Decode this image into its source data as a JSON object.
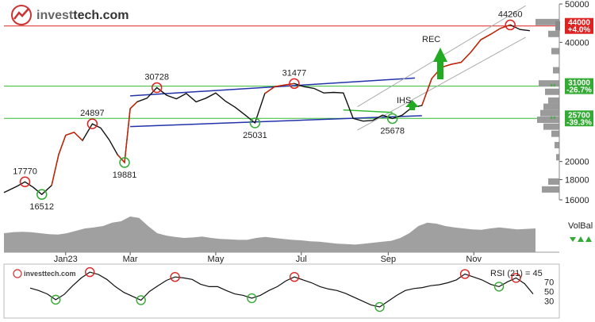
{
  "logo": {
    "prefix": "invest",
    "suffix": "tech.com"
  },
  "colors": {
    "price_line": "#111111",
    "price_red_segment": "#cc2200",
    "support_line": "#33bb33",
    "resistance_line": "#dd2222",
    "channel_line": "#2233aa",
    "up_channel": "#aaaaaa",
    "volume_fill": "#a0a0a0",
    "badge_red": "#dd2222",
    "badge_green": "#33aa33",
    "arrow_green": "#22aa22"
  },
  "chart_data": [
    {
      "type": "line",
      "name": "price",
      "x": [
        "2022-12-01",
        "2022-12-10",
        "2022-12-16",
        "2022-12-22",
        "2022-12-28",
        "2023-01-04",
        "2023-01-09",
        "2023-01-14",
        "2023-01-20",
        "2023-01-26",
        "2023-02-02",
        "2023-02-08",
        "2023-02-14",
        "2023-02-20",
        "2023-02-25",
        "2023-03-01",
        "2023-03-06",
        "2023-03-13",
        "2023-03-20",
        "2023-03-27",
        "2023-04-03",
        "2023-04-10",
        "2023-04-17",
        "2023-04-24",
        "2023-05-01",
        "2023-05-08",
        "2023-05-15",
        "2023-05-22",
        "2023-05-29",
        "2023-06-05",
        "2023-06-12",
        "2023-06-19",
        "2023-06-26",
        "2023-07-03",
        "2023-07-10",
        "2023-07-17",
        "2023-07-24",
        "2023-07-31",
        "2023-08-07",
        "2023-08-14",
        "2023-08-21",
        "2023-08-28",
        "2023-09-04",
        "2023-09-11",
        "2023-09-18",
        "2023-09-25",
        "2023-10-02",
        "2023-10-09",
        "2023-10-16",
        "2023-10-23",
        "2023-10-30",
        "2023-11-06",
        "2023-11-13",
        "2023-11-20",
        "2023-11-27",
        "2023-12-04",
        "2023-12-11"
      ],
      "y": [
        16700,
        17300,
        17770,
        17200,
        16512,
        17400,
        20800,
        23300,
        23700,
        22600,
        24897,
        24300,
        22700,
        20800,
        19881,
        27200,
        28300,
        28900,
        30728,
        29400,
        28800,
        29700,
        28300,
        28900,
        29800,
        28400,
        27400,
        26200,
        25031,
        29700,
        30900,
        31200,
        31477,
        30900,
        30600,
        29800,
        29900,
        29800,
        25700,
        25300,
        25400,
        26200,
        25678,
        26200,
        27400,
        27700,
        32400,
        34600,
        35200,
        35600,
        37800,
        40600,
        41900,
        43400,
        44260,
        43100,
        42800
      ],
      "xlim": [
        "2022-12-01",
        "2023-12-15"
      ],
      "y_scale": "log",
      "ylim": [
        16000,
        50000
      ],
      "y_ticks": [
        16000,
        18000,
        20000,
        40000,
        50000
      ],
      "x_ticks": [
        "Jan23",
        "Mar",
        "May",
        "Jul",
        "Sep",
        "Nov"
      ],
      "annotations": [
        {
          "text": "17770",
          "x": "2022-12-16",
          "y": 17770,
          "marker": "red-circle"
        },
        {
          "text": "16512",
          "x": "2022-12-28",
          "y": 16512,
          "marker": "green-circle"
        },
        {
          "text": "24897",
          "x": "2023-02-02",
          "y": 24897,
          "marker": "red-circle"
        },
        {
          "text": "19881",
          "x": "2023-02-25",
          "y": 19881,
          "marker": "green-circle"
        },
        {
          "text": "30728",
          "x": "2023-03-20",
          "y": 30728,
          "marker": "red-circle"
        },
        {
          "text": "25031",
          "x": "2023-05-29",
          "y": 25031,
          "marker": "green-circle"
        },
        {
          "text": "31477",
          "x": "2023-06-26",
          "y": 31477,
          "marker": "red-circle"
        },
        {
          "text": "25678",
          "x": "2023-09-04",
          "y": 25678,
          "marker": "green-circle"
        },
        {
          "text": "44260",
          "x": "2023-11-27",
          "y": 44260,
          "marker": "red-circle"
        }
      ],
      "levels": [
        {
          "value": 44000,
          "label": "44000",
          "pct": "+4.0%",
          "kind": "resistance"
        },
        {
          "value": 31000,
          "label": "31000",
          "pct": "-26.7%",
          "kind": "support"
        },
        {
          "value": 25700,
          "label": "25700",
          "pct": "-39.3%",
          "kind": "support"
        }
      ],
      "pattern_labels": [
        "REC",
        "IHS"
      ]
    },
    {
      "type": "area",
      "name": "volume balance",
      "label": "VolBal",
      "x_count": 60,
      "values": [
        0.4,
        0.42,
        0.43,
        0.42,
        0.4,
        0.38,
        0.37,
        0.4,
        0.45,
        0.5,
        0.52,
        0.55,
        0.62,
        0.65,
        0.75,
        0.72,
        0.55,
        0.4,
        0.35,
        0.32,
        0.3,
        0.31,
        0.33,
        0.3,
        0.28,
        0.27,
        0.26,
        0.26,
        0.3,
        0.32,
        0.3,
        0.28,
        0.26,
        0.25,
        0.23,
        0.22,
        0.2,
        0.18,
        0.17,
        0.16,
        0.18,
        0.2,
        0.22,
        0.24,
        0.3,
        0.4,
        0.55,
        0.62,
        0.6,
        0.55,
        0.52,
        0.5,
        0.48,
        0.47,
        0.5,
        0.52,
        0.5,
        0.48,
        0.49,
        0.5
      ]
    },
    {
      "type": "line",
      "name": "RSI",
      "label": "RSI (21) = 45",
      "ylim": [
        0,
        100
      ],
      "y_ticks": [
        30,
        50,
        70
      ],
      "x_count": 60,
      "values": [
        57,
        52,
        45,
        33,
        44,
        62,
        78,
        90,
        85,
        75,
        60,
        48,
        40,
        32,
        50,
        62,
        73,
        80,
        78,
        75,
        65,
        60,
        60,
        52,
        45,
        42,
        36,
        42,
        52,
        60,
        72,
        80,
        74,
        68,
        60,
        55,
        52,
        46,
        38,
        30,
        22,
        18,
        30,
        42,
        52,
        56,
        58,
        62,
        64,
        68,
        74,
        86,
        80,
        74,
        65,
        60,
        70,
        78,
        66,
        45
      ],
      "markers": [
        {
          "index": 3,
          "kind": "green-circle"
        },
        {
          "index": 7,
          "kind": "red-circle"
        },
        {
          "index": 13,
          "kind": "green-circle"
        },
        {
          "index": 17,
          "kind": "red-circle"
        },
        {
          "index": 26,
          "kind": "green-circle"
        },
        {
          "index": 31,
          "kind": "red-circle"
        },
        {
          "index": 41,
          "kind": "green-circle"
        },
        {
          "index": 51,
          "kind": "red-circle"
        },
        {
          "index": 55,
          "kind": "green-circle"
        },
        {
          "index": 57,
          "kind": "red-circle"
        }
      ]
    }
  ]
}
